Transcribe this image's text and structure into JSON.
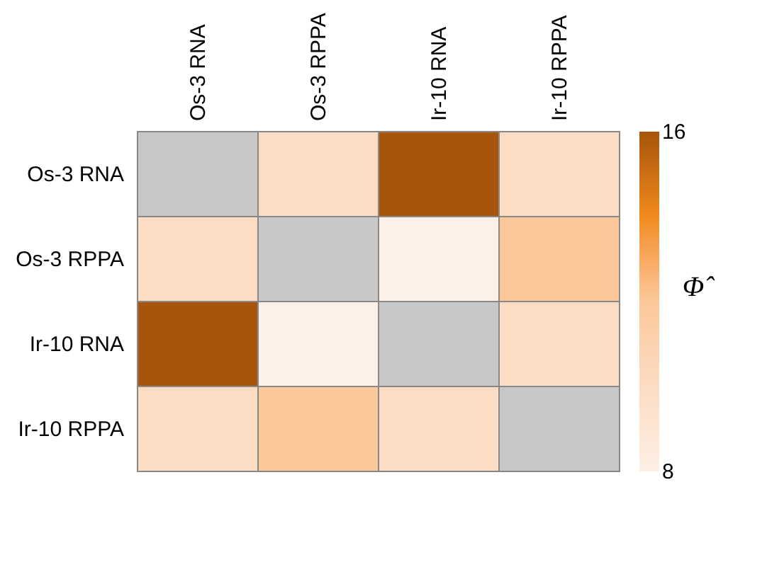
{
  "chart_data": {
    "type": "heatmap",
    "categories": [
      "Os-3 RNA",
      "Os-3 RPPA",
      "Ir-10 RNA",
      "Ir-10 RPPA"
    ],
    "y_categories": [
      "Os-3 RNA",
      "Os-3 RPPA",
      "Ir-10 RNA",
      "Ir-10 RPPA"
    ],
    "cells": [
      [
        null,
        10,
        16,
        10
      ],
      [
        10,
        null,
        8,
        12
      ],
      [
        16,
        8,
        null,
        10
      ],
      [
        10,
        12,
        10,
        null
      ]
    ],
    "clim": [
      8,
      16
    ],
    "cticks": [
      8,
      16
    ],
    "clabel": "Φ̂"
  }
}
